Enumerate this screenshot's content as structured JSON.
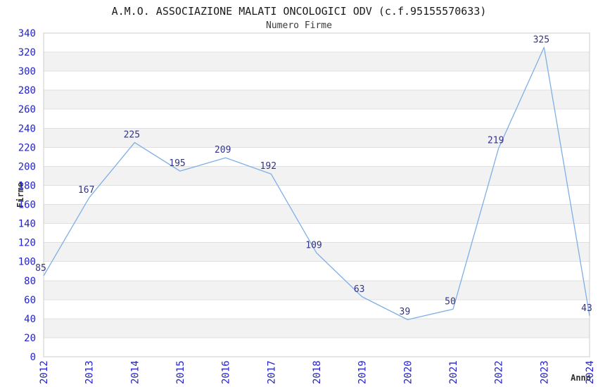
{
  "chart_data": {
    "type": "line",
    "title": "A.M.O. ASSOCIAZIONE MALATI ONCOLOGICI ODV (c.f.95155570633)",
    "subtitle": "Numero Firme",
    "xlabel": "Anno",
    "ylabel": "Firme",
    "x": [
      "2012",
      "2013",
      "2014",
      "2015",
      "2016",
      "2017",
      "2018",
      "2019",
      "2020",
      "2021",
      "2022",
      "2023",
      "2024"
    ],
    "values": [
      85,
      167,
      225,
      195,
      209,
      192,
      109,
      63,
      39,
      50,
      219,
      325,
      43
    ],
    "ylim": [
      0,
      340
    ],
    "ytick_step": 20,
    "grid": true,
    "legend_position": "none",
    "style": {
      "line_color": "#7FAFE6",
      "tick_label_color": "#2222CC",
      "point_label_color": "#333388",
      "band_color": "#F2F2F2",
      "band_alt_color": "#FFFFFF",
      "grid_color": "#E0E0E0",
      "border_color": "#CCCCCC",
      "title_color": "#1A1A1A",
      "subtitle_color": "#3A3A3A",
      "axis_title_color": "#303030",
      "background": "#FFFFFF"
    }
  }
}
